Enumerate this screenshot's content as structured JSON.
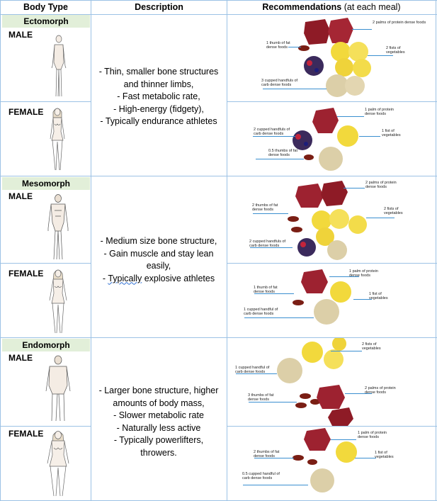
{
  "header": {
    "body_type": "Body Type",
    "description": "Description",
    "recommendations": "Recommendations",
    "recommendations_suffix": "(at each meal)"
  },
  "colors": {
    "grid": "#9cc2e5",
    "type_band": "#e2efd9",
    "leader": "#3a8fd0",
    "squiggle": "#2b6cd1"
  },
  "rows": [
    {
      "type": "Ectomorph",
      "male": "MALE",
      "female": "FEMALE",
      "description": [
        "- Thin, smaller bone structures",
        "and thinner limbs,",
        "- Fast metabolic rate,",
        "- High-energy (fidgety),",
        "- Typically endurance athletes"
      ],
      "male_rec": {
        "protein": "2 palms of protein dense foods",
        "fat": "1 thumb of fat dense foods",
        "veg": "2 fists of vegetables",
        "carb": "3 cupped handfuls of carb dense foods"
      },
      "female_rec": {
        "protein": "1 palm of protein dense foods",
        "carb": "2 cupped handfuls of carb dense foods",
        "veg": "1 fist of vegetables",
        "fat": "0.5 thumbs of fat dense foods"
      }
    },
    {
      "type": "Mesomorph",
      "male": "MALE",
      "female": "FEMALE",
      "description": [
        "- Medium size bone structure,",
        "- Gain muscle and stay lean",
        "easily,",
        "- Typically explosive athletes"
      ],
      "desc_underlined_word": "Typically",
      "male_rec": {
        "protein": "2 palms of protein dense foods",
        "fat": "2 thumbs of fat dense foods",
        "veg": "2 fists of vegetables",
        "carb": "2 cupped handfuls of carb dense foods"
      },
      "female_rec": {
        "protein": "1 palm of protein dense foods",
        "fat": "1 thumb of fat dense foods",
        "veg": "1 fist of vegetables",
        "carb": "1 cupped handful of carb dense foods"
      }
    },
    {
      "type": "Endomorph",
      "male": "MALE",
      "female": "FEMALE",
      "description": [
        "- Larger bone structure, higher",
        "amounts of body mass,",
        "- Slower metabolic rate",
        "- Naturally less active",
        "- Typically powerlifters,",
        "throwers."
      ],
      "male_rec": {
        "veg": "2 fists of vegetables",
        "carb": "1 cupped handful of carb dense foods",
        "fat": "3 thumbs of fat dense foods",
        "protein": "2 palms of protein dense foods"
      },
      "female_rec": {
        "protein": "1 palm of protein dense foods",
        "fat": "2 thumbs of fat dense foods",
        "veg": "1 fist of vegetables",
        "carb": "0.5 cupped handful of carb dense foods"
      }
    }
  ]
}
